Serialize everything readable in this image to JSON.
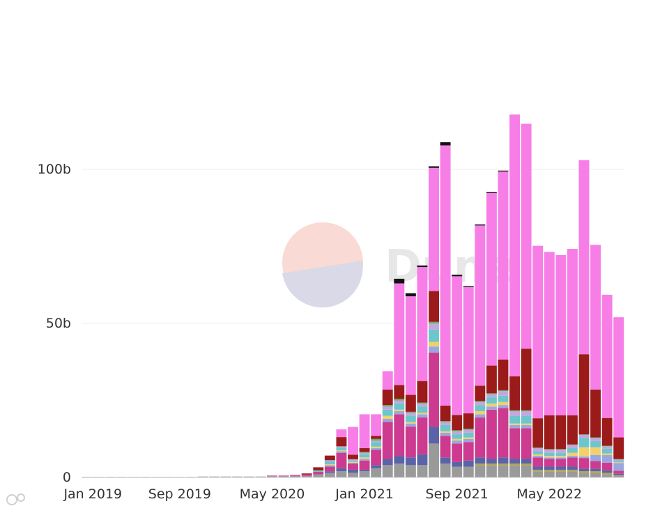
{
  "chart_data": {
    "type": "bar",
    "stacked": true,
    "title": "",
    "xlabel": "",
    "ylabel": "",
    "ylim": [
      0,
      150
    ],
    "y_unit": "b",
    "grid": true,
    "y_ticks": [
      {
        "value": 0,
        "label": "0"
      },
      {
        "value": 50,
        "label": "50b"
      },
      {
        "value": 100,
        "label": "100b"
      }
    ],
    "x_tick_labels": [
      {
        "index": 0,
        "label": "Jan 2019"
      },
      {
        "index": 8,
        "label": "Sep 2019"
      },
      {
        "index": 16,
        "label": "May 2020"
      },
      {
        "index": 24,
        "label": "Jan 2021"
      },
      {
        "index": 32,
        "label": "Sep 2021"
      },
      {
        "index": 40,
        "label": "May 2022"
      }
    ],
    "categories": [
      "2019-01",
      "2019-02",
      "2019-03",
      "2019-04",
      "2019-05",
      "2019-06",
      "2019-07",
      "2019-08",
      "2019-09",
      "2019-10",
      "2019-11",
      "2019-12",
      "2020-01",
      "2020-02",
      "2020-03",
      "2020-04",
      "2020-05",
      "2020-06",
      "2020-07",
      "2020-08",
      "2020-09",
      "2020-10",
      "2020-11",
      "2020-12",
      "2021-01",
      "2021-02",
      "2021-03",
      "2021-04",
      "2021-05",
      "2021-06",
      "2021-07",
      "2021-08",
      "2021-09",
      "2021-10",
      "2021-11",
      "2021-12",
      "2022-01",
      "2022-02",
      "2022-03",
      "2022-04",
      "2022-05",
      "2022-06",
      "2022-07",
      "2022-08",
      "2022-09",
      "2022-10",
      "2022-11"
    ],
    "series": [
      {
        "name": "gray",
        "color": "#9a9a9a",
        "values": [
          0.2,
          0.2,
          0.2,
          0.2,
          0.2,
          0.2,
          0.2,
          0.2,
          0.2,
          0.2,
          0.3,
          0.3,
          0.3,
          0.3,
          0.3,
          0.3,
          0.4,
          0.4,
          0.5,
          0.5,
          1.0,
          1.5,
          2.0,
          1.5,
          2.0,
          3.0,
          4.0,
          4.5,
          4.0,
          4.0,
          11.0,
          4.5,
          3.5,
          3.5,
          4.0,
          4.0,
          4.0,
          4.0,
          4.0,
          2.0,
          2.0,
          2.0,
          2.0,
          1.5,
          1.5,
          1.0,
          0.5
        ]
      },
      {
        "name": "olive",
        "color": "#b5a642",
        "values": [
          0,
          0,
          0,
          0,
          0,
          0,
          0,
          0,
          0,
          0,
          0,
          0,
          0,
          0,
          0,
          0,
          0,
          0,
          0,
          0,
          0,
          0,
          0,
          0,
          0,
          0,
          0,
          0,
          0,
          0,
          0,
          0,
          0,
          0,
          0.5,
          0.5,
          0.5,
          0.5,
          0.5,
          0.5,
          0.5,
          0.5,
          0.5,
          0.5,
          0.5,
          0.5,
          0.2
        ]
      },
      {
        "name": "slate-blue",
        "color": "#5b63a8",
        "values": [
          0,
          0,
          0,
          0,
          0,
          0,
          0,
          0,
          0,
          0,
          0,
          0,
          0,
          0,
          0,
          0,
          0,
          0,
          0,
          0,
          0,
          0.5,
          1.0,
          1.0,
          0.5,
          1.0,
          2.0,
          2.5,
          2.5,
          3.5,
          5.5,
          2.0,
          1.5,
          2.0,
          2.0,
          1.5,
          2.0,
          1.5,
          1.5,
          1.0,
          1.0,
          1.0,
          1.0,
          0.8,
          0.8,
          0.8,
          0.5
        ]
      },
      {
        "name": "magenta",
        "color": "#cc3b8f",
        "values": [
          0,
          0,
          0,
          0,
          0,
          0,
          0,
          0,
          0,
          0,
          0,
          0,
          0,
          0,
          0,
          0,
          0.2,
          0.2,
          0.3,
          0.5,
          0.8,
          1.5,
          5.0,
          2.0,
          3.0,
          5.0,
          12.0,
          13.5,
          10.0,
          12.0,
          24.0,
          7.0,
          6.0,
          6.0,
          13.0,
          16.0,
          16.0,
          10.0,
          10.0,
          3.0,
          2.5,
          2.5,
          3.0,
          3.5,
          2.5,
          2.5,
          1.0
        ]
      },
      {
        "name": "periwinkle",
        "color": "#9aa6e0",
        "values": [
          0,
          0,
          0,
          0,
          0,
          0,
          0,
          0,
          0,
          0,
          0,
          0,
          0,
          0,
          0,
          0,
          0,
          0,
          0,
          0,
          0,
          0.5,
          0.5,
          0.3,
          0.5,
          0.5,
          1.0,
          1.0,
          1.0,
          1.0,
          2.0,
          1.0,
          1.0,
          1.0,
          1.0,
          1.0,
          1.0,
          1.0,
          1.0,
          0.5,
          0.5,
          0.5,
          0.5,
          0.5,
          2.0,
          2.5,
          2.5
        ]
      },
      {
        "name": "yellow",
        "color": "#f2d06b",
        "values": [
          0,
          0,
          0,
          0,
          0,
          0,
          0,
          0,
          0,
          0,
          0,
          0,
          0,
          0,
          0,
          0,
          0,
          0,
          0,
          0,
          0,
          0.3,
          0.3,
          0.3,
          0.5,
          0.5,
          1.0,
          0.5,
          0.5,
          0.5,
          1.5,
          0.5,
          0.5,
          0.5,
          1.0,
          1.0,
          1.0,
          0.5,
          0.5,
          0.5,
          0.5,
          0.5,
          1.0,
          3.0,
          2.5,
          0.5,
          0.2
        ]
      },
      {
        "name": "teal",
        "color": "#6cc6cb",
        "values": [
          0,
          0,
          0,
          0,
          0,
          0,
          0,
          0,
          0,
          0,
          0,
          0,
          0,
          0,
          0,
          0,
          0,
          0,
          0,
          0,
          0.5,
          1.0,
          1.0,
          0.5,
          1.0,
          1.5,
          2.0,
          2.0,
          2.0,
          2.0,
          4.0,
          2.0,
          1.5,
          1.5,
          2.0,
          2.0,
          2.0,
          2.5,
          2.5,
          1.0,
          1.0,
          1.0,
          1.5,
          3.0,
          2.0,
          1.5,
          0.5
        ]
      },
      {
        "name": "light-purple",
        "color": "#c4a6e0",
        "values": [
          0,
          0,
          0,
          0,
          0,
          0,
          0,
          0,
          0,
          0,
          0,
          0,
          0,
          0,
          0,
          0,
          0,
          0,
          0,
          0,
          0,
          0.3,
          0.3,
          0.3,
          0.5,
          0.5,
          1.0,
          1.0,
          1.0,
          1.0,
          2.0,
          1.0,
          1.0,
          1.0,
          1.0,
          1.0,
          1.5,
          1.5,
          1.5,
          1.0,
          1.0,
          1.0,
          1.0,
          1.0,
          1.0,
          0.8,
          0.5
        ]
      },
      {
        "name": "green",
        "color": "#5cb85c",
        "values": [
          0,
          0,
          0,
          0,
          0,
          0,
          0,
          0,
          0,
          0,
          0,
          0,
          0,
          0,
          0,
          0,
          0,
          0,
          0,
          0,
          0,
          0,
          0,
          0,
          0.3,
          0.5,
          0.5,
          0.5,
          0.3,
          0.3,
          0.5,
          0.3,
          0.3,
          0.3,
          0.3,
          0.3,
          0.3,
          0.3,
          0.3,
          0.2,
          0.2,
          0.2,
          0.2,
          0.2,
          0.2,
          0.2,
          0.1
        ]
      },
      {
        "name": "dark-red",
        "color": "#9b1b1b",
        "values": [
          0,
          0,
          0,
          0,
          0,
          0,
          0,
          0,
          0,
          0,
          0,
          0,
          0,
          0,
          0,
          0,
          0,
          0,
          0,
          0.3,
          1.0,
          1.5,
          3.0,
          1.5,
          1.2,
          1.0,
          5.0,
          4.5,
          5.5,
          7.0,
          10.0,
          5.0,
          5.0,
          5.0,
          5.0,
          9.0,
          10.0,
          11.0,
          20.0,
          9.5,
          11.0,
          11.0,
          9.5,
          26.0,
          15.5,
          9.0,
          7.0
        ]
      },
      {
        "name": "pink",
        "color": "#f77ee6",
        "values": [
          0,
          0,
          0,
          0,
          0,
          0,
          0,
          0,
          0,
          0,
          0,
          0,
          0,
          0,
          0,
          0,
          0,
          0,
          0,
          0,
          0,
          0,
          2.5,
          9.0,
          11.0,
          7.0,
          6.0,
          33.0,
          32.0,
          37.0,
          40.0,
          84.5,
          45.0,
          41.0,
          52.0,
          56.0,
          61.0,
          85.0,
          73.0,
          56.0,
          53.0,
          52.0,
          54.0,
          63.0,
          47.0,
          40.0,
          39.0
        ]
      },
      {
        "name": "black",
        "color": "#111111",
        "values": [
          0,
          0,
          0,
          0,
          0,
          0,
          0,
          0,
          0,
          0,
          0,
          0,
          0,
          0,
          0,
          0,
          0,
          0,
          0,
          0,
          0,
          0,
          0,
          0,
          0,
          0,
          0,
          1.5,
          1.0,
          0.5,
          0.5,
          1.0,
          0.5,
          0.3,
          0.3,
          0.3,
          0.3,
          0,
          0,
          0,
          0,
          0,
          0,
          0,
          0,
          0,
          0
        ]
      }
    ]
  }
}
